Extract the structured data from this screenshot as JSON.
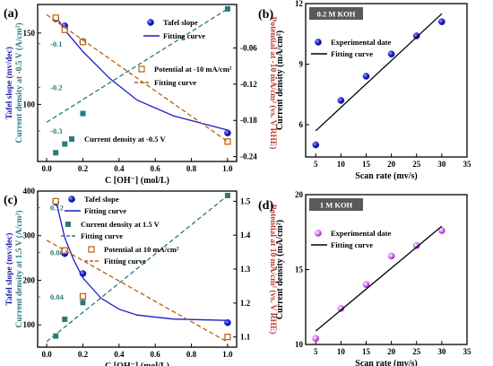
{
  "chart_data": [
    {
      "id": "a",
      "panel_label": "(a)",
      "type": "scatter",
      "xlabel": "C [OH⁻] (mol/L)",
      "xlim": [
        -0.05,
        1.05
      ],
      "x_ticks": [
        "0.0",
        "0.2",
        "0.4",
        "0.6",
        "0.8",
        "1.0"
      ],
      "y_left": {
        "label_lines": [
          "Tafel slope (mv/dec)",
          "Current density at -0.5 V (A/cm²)"
        ],
        "color": "#1a1aa8",
        "ticks": [
          "100",
          "150"
        ],
        "inner_ticks": [
          "-0.1",
          "-0.2",
          "-0.3"
        ]
      },
      "y_right": {
        "label": "Potential at -10 mA/cm² (vs. V RHE)",
        "color": "#c0392b",
        "ticks": [
          "-0.06",
          "-0.12",
          "-0.18",
          "-0.24"
        ]
      },
      "series": [
        {
          "name": "Tafel slope",
          "marker": "circle",
          "color": "#1c1ccc",
          "x": [
            0.05,
            0.1,
            0.2,
            1.0
          ],
          "y": [
            160,
            155,
            144,
            80
          ]
        },
        {
          "name": "Fitting curve",
          "line": "solid",
          "color": "#1c1ccc",
          "x": [
            0.05,
            0.1,
            0.2,
            0.35,
            0.5,
            0.7,
            1.0
          ],
          "y": [
            162,
            152,
            137,
            118,
            103,
            92,
            82
          ]
        },
        {
          "name": "Current density at -0.5 V",
          "marker": "square",
          "color": "#2a7a7a",
          "x": [
            0.05,
            0.1,
            0.2,
            1.0
          ],
          "y": [
            -0.35,
            -0.33,
            -0.26,
            -0.02
          ]
        },
        {
          "name": "",
          "line": "dashed",
          "color": "#2a7a7a",
          "x": [
            0.0,
            1.0
          ],
          "y": [
            -0.28,
            -0.02
          ]
        },
        {
          "name": "Potential at -10 mA/cm²",
          "marker": "open-square",
          "color": "#b8600a",
          "x": [
            0.05,
            0.1,
            0.2,
            1.0
          ],
          "y": [
            -0.01,
            -0.03,
            -0.05,
            -0.215
          ]
        },
        {
          "name": "Fitting curve",
          "line": "dashed",
          "color": "#b8600a",
          "x": [
            0.0,
            1.0
          ],
          "y": [
            -0.005,
            -0.215
          ]
        }
      ],
      "legend": [
        "Tafel slope",
        "Fitting curve",
        "Potential at -10 mA/cm²",
        "Fitting curve",
        "Current density at -0.5 V"
      ]
    },
    {
      "id": "b",
      "panel_label": "(b)",
      "type": "scatter",
      "tag": "0.2 M KOH",
      "xlabel": "Scan rate (mv/s)",
      "ylabel": "Current density (mA/cm²)",
      "xlim": [
        3,
        35
      ],
      "ylim": [
        4.4,
        12
      ],
      "x_ticks": [
        "5",
        "10",
        "15",
        "20",
        "25",
        "30",
        "35"
      ],
      "y_ticks": [
        "6",
        "9",
        "12"
      ],
      "series": [
        {
          "name": "Experimental date",
          "marker": "circle",
          "color": "#1c1ccc",
          "x": [
            5,
            10,
            15,
            20,
            25,
            30
          ],
          "y": [
            5.0,
            7.2,
            8.4,
            9.5,
            10.4,
            11.1
          ]
        },
        {
          "name": "Fitting curve",
          "line": "solid",
          "color": "#000000",
          "x": [
            5,
            30
          ],
          "y": [
            5.7,
            11.5
          ]
        }
      ],
      "legend": [
        "Experimental date",
        "Fitting curve"
      ]
    },
    {
      "id": "c",
      "panel_label": "(c)",
      "type": "scatter",
      "xlabel": "C [OH⁻] (mol/L)",
      "xlim": [
        -0.05,
        1.05
      ],
      "x_ticks": [
        "0.0",
        "0.2",
        "0.4",
        "0.6",
        "0.8",
        "1.0"
      ],
      "y_left": {
        "label_lines": [
          "Tafel slope (mv/dec)",
          "Current density at 1.5 V (A/cm²)"
        ],
        "color": "#1a1aa8",
        "ticks": [
          "100",
          "200",
          "300",
          "400"
        ],
        "inner_ticks": [
          "0.12",
          "0.08",
          "0.04"
        ]
      },
      "y_right": {
        "label": "Potential at 10 mA/cm² (vs. V RHE)",
        "color": "#c0392b",
        "ticks": [
          "1.1",
          "1.2",
          "1.3",
          "1.4",
          "1.5"
        ]
      },
      "series": [
        {
          "name": "Tafel slope",
          "marker": "circle",
          "color": "#1c1ccc",
          "x": [
            0.05,
            0.1,
            0.2,
            1.0
          ],
          "y": [
            375,
            260,
            215,
            105
          ]
        },
        {
          "name": "Fitting curve",
          "line": "solid",
          "color": "#1c1ccc",
          "x": [
            0.05,
            0.1,
            0.15,
            0.2,
            0.3,
            0.4,
            0.5,
            0.7,
            1.0
          ],
          "y": [
            380,
            295,
            245,
            205,
            160,
            135,
            122,
            113,
            110
          ]
        },
        {
          "name": "Current density at 1.5 V",
          "marker": "square",
          "color": "#2a7a7a",
          "x": [
            0.05,
            0.1,
            0.2,
            1.0
          ],
          "y": [
            0.005,
            0.02,
            0.035,
            0.131
          ]
        },
        {
          "name": "Fitting curve",
          "line": "dashed",
          "color": "#2a7a7a",
          "x": [
            0.0,
            1.0
          ],
          "y": [
            0.0,
            0.131
          ]
        },
        {
          "name": "Potential at 10 mA/cm²",
          "marker": "open-square",
          "color": "#b8600a",
          "x": [
            0.05,
            0.1,
            0.2,
            1.0
          ],
          "y": [
            1.5,
            1.355,
            1.22,
            1.1
          ]
        },
        {
          "name": "Fitting curve",
          "line": "dashed",
          "color": "#b8600a",
          "x": [
            0.0,
            1.0
          ],
          "y": [
            1.385,
            1.085
          ]
        }
      ],
      "legend": [
        "Tafel slope",
        "Fitting curve",
        "Current density at 1.5 V",
        "Fitting curve",
        "Potential at 10 mA/cm²",
        "Fitting curve"
      ]
    },
    {
      "id": "d",
      "panel_label": "(d)",
      "type": "scatter",
      "tag": "1 M KOH",
      "xlabel": "Scan rate (mv/s)",
      "ylabel": "Current density (mA/cm²)",
      "xlim": [
        3,
        35
      ],
      "ylim": [
        10,
        20
      ],
      "x_ticks": [
        "5",
        "10",
        "15",
        "20",
        "25",
        "30",
        "35"
      ],
      "y_ticks": [
        "10",
        "15",
        "20"
      ],
      "series": [
        {
          "name": "Experimental date",
          "marker": "circle",
          "color": "#c040e0",
          "x": [
            5,
            10,
            15,
            20,
            25,
            30
          ],
          "y": [
            10.4,
            12.4,
            14.0,
            15.9,
            16.6,
            17.6
          ]
        },
        {
          "name": "Fitting curve",
          "line": "solid",
          "color": "#000000",
          "x": [
            5,
            30
          ],
          "y": [
            10.9,
            17.9
          ]
        }
      ],
      "legend": [
        "Experimental date",
        "Fitting curve"
      ]
    }
  ]
}
